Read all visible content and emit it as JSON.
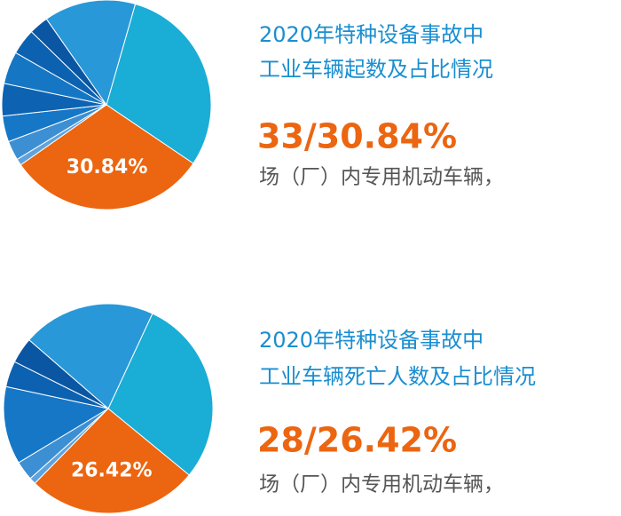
{
  "chart_data": [
    {
      "type": "pie",
      "title": [
        "2020年特种设备事故中",
        "工业车辆起数及占比情况"
      ],
      "highlight": "33/30.84%",
      "note": "场（厂）内专用机动车辆，",
      "categories": [
        null,
        null,
        null,
        null,
        null,
        null,
        null,
        null,
        null,
        null
      ],
      "values": [
        30,
        30.84,
        1,
        3,
        4,
        5,
        5,
        4,
        3,
        14.16
      ],
      "value_labels": [
        null,
        "30.84%",
        null,
        null,
        null,
        null,
        null,
        null,
        null,
        null
      ],
      "colors": [
        "#1aadd6",
        "#ec6510",
        "#5fa3dc",
        "#3d8fd3",
        "#1677c6",
        "#0d63b2",
        "#1577c4",
        "#0c61b0",
        "#0a56a3",
        "#2898d8"
      ]
    },
    {
      "type": "pie",
      "title": [
        "2020年特种设备事故中",
        "工业车辆死亡人数及占比情况"
      ],
      "highlight": "28/26.42%",
      "note": "场（厂）内专用机动车辆，",
      "categories": [
        null,
        null,
        null,
        null,
        null,
        null,
        null,
        null
      ],
      "values": [
        29,
        26.42,
        1,
        3,
        12,
        4,
        4,
        20.58
      ],
      "value_labels": [
        null,
        "26.42%",
        null,
        null,
        null,
        null,
        null,
        null
      ],
      "colors": [
        "#1aadd6",
        "#ec6510",
        "#5fa3dc",
        "#3d8fd3",
        "#1677c6",
        "#0c61b0",
        "#0a56a3",
        "#2898d8"
      ]
    }
  ]
}
